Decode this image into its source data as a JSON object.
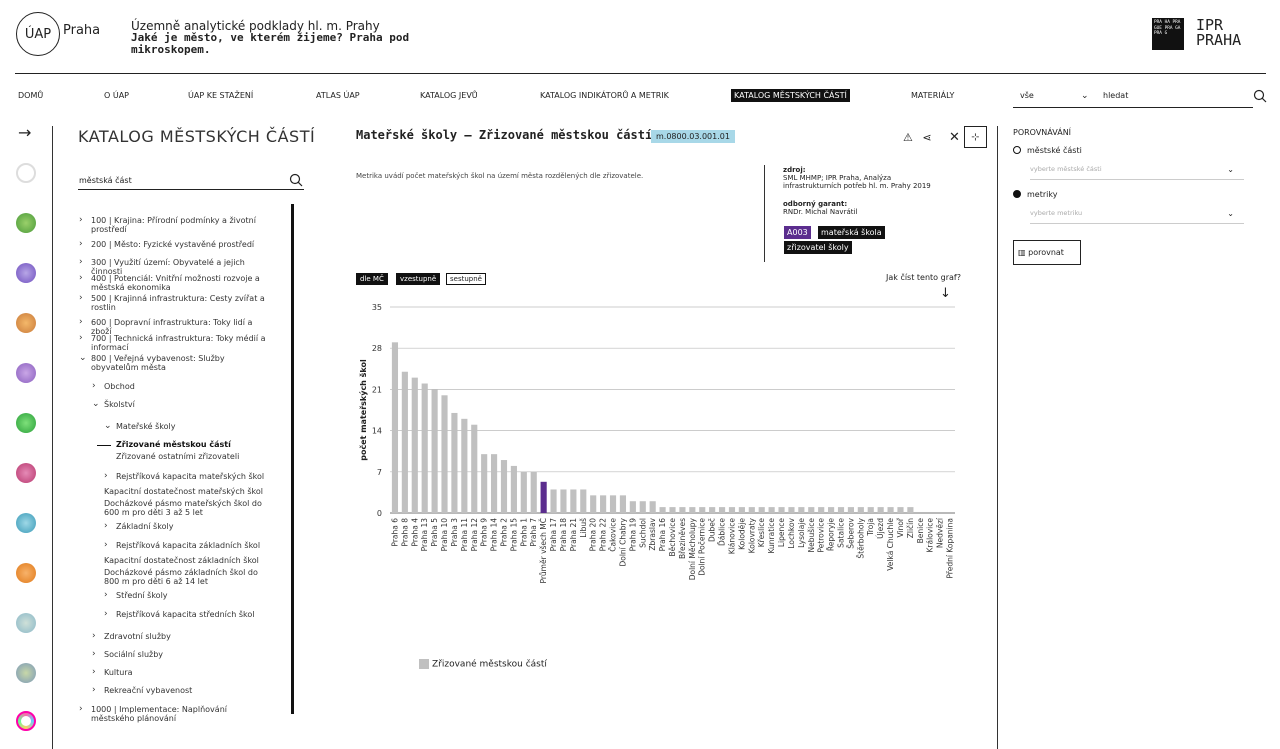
{
  "header": {
    "logo_text": "ÚAP",
    "logo_suffix": "Praha",
    "title": "Územně analytické podklady hl. m. Prahy",
    "subtitle": "Jaké je město, ve kterém žijeme? Praha pod mikroskopem.",
    "ipr_box": "PRA HA PRA GUE PRA GA PRA G",
    "ipr_text": "IPR PRAHA"
  },
  "nav": [
    "DOMŮ",
    "O ÚAP",
    "ÚAP KE STAŽENÍ",
    "ATLAS ÚAP",
    "KATALOG JEVŮ",
    "KATALOG INDIKÁTORŮ A METRIK",
    "KATALOG MĚSTSKÝCH ČÁSTÍ",
    "MATERIÁLY"
  ],
  "search": {
    "select": "vše",
    "placeholder": "hledat"
  },
  "left": {
    "title": "KATALOG MĚSTSKÝCH ČÁSTÍ",
    "search_value": "městská část",
    "tree": [
      "100 | Krajina: Přírodní podmínky a životní prostředí",
      "200 | Město: Fyzické vystavěné prostředí",
      "300 | Využití území: Obyvatelé a jejich činnosti",
      "400 | Potenciál: Vnitřní možnosti rozvoje a městská ekonomika",
      "500 | Krajinná infrastruktura: Cesty zvířat a rostlin",
      "600 | Dopravní infrastruktura: Toky lidí a zboží",
      "700 | Technická infrastruktura: Toky médií a informací",
      "800 | Veřejná vybavenost: Služby obyvatelům města",
      "Obchod",
      "Školství",
      "Mateřské školy",
      "Zřizované městskou částí",
      "Zřizované ostatními zřizovateli",
      "Rejstříková kapacita mateřských škol",
      "Kapacitní dostatečnost mateřských škol",
      "Docházkové pásmo mateřských škol do 600 m pro děti 3 až 5 let",
      "Základní školy",
      "Rejstříková kapacita základních škol",
      "Kapacitní dostatečnost základních škol",
      "Docházkové pásmo základních škol do 800 m pro děti 6 až 14 let",
      "Střední školy",
      "Rejstříková kapacita středních škol",
      "Zdravotní služby",
      "Sociální služby",
      "Kultura",
      "Rekreační vybavenost",
      "1000 | Implementace: Naplňování městského plánování"
    ]
  },
  "main": {
    "title": "Mateřské školy — Zřizované městskou částí",
    "code": "m.0800.03.001.01",
    "description": "Metrika uvádí počet mateřských škol na území města rozdělených dle zřizovatele.",
    "source_label": "zdroj:",
    "source": "SML MHMP; IPR Praha, Analýza infrastrukturních potřeb hl. m. Prahy 2019",
    "guarantor_label": "odborný garant:",
    "guarantor": "RNDr. Michal Navrátil",
    "tags": [
      "A003",
      "mateřská škola",
      "zřizovatel školy"
    ],
    "sort_buttons": [
      "dle MČ",
      "vzestupně",
      "sestupně"
    ],
    "how_to_read": "Jak číst tento graf?",
    "legend": "Zřizované městskou částí"
  },
  "chart_data": {
    "type": "bar",
    "ylabel": "počet mateřských škol",
    "xlabel": "",
    "ylim": [
      0,
      35
    ],
    "yticks": [
      0,
      7,
      14,
      21,
      28,
      35
    ],
    "categories": [
      "Praha 6",
      "Praha 8",
      "Praha 4",
      "Praha 13",
      "Praha 5",
      "Praha 10",
      "Praha 3",
      "Praha 11",
      "Praha 12",
      "Praha 9",
      "Praha 14",
      "Praha 2",
      "Praha 15",
      "Praha 1",
      "Praha 7",
      "Průměr všech MČ",
      "Praha 17",
      "Praha 18",
      "Praha 21",
      "Libuš",
      "Praha 20",
      "Praha 22",
      "Čakovice",
      "Dolní Chabry",
      "Praha 19",
      "Suchdol",
      "Zbraslav",
      "Praha 16",
      "Běchovice",
      "Březiněves",
      "Dolní Měcholupy",
      "Dolní Počernice",
      "Dubeč",
      "Ďáblice",
      "Klánovice",
      "Koloděje",
      "Kolovraty",
      "Křeslice",
      "Kunratice",
      "Lipence",
      "Lochkov",
      "Lysolaje",
      "Nebušice",
      "Petrovice",
      "Řeporyje",
      "Satalice",
      "Šeberov",
      "Štěrboholy",
      "Troja",
      "Újezd",
      "Velká Chuchle",
      "Vinoř",
      "Zličín",
      "Benice",
      "Královice",
      "Nedvězí",
      "Přední Kopanina"
    ],
    "values": [
      29,
      24,
      23,
      22,
      21,
      20,
      17,
      16,
      15,
      10,
      10,
      9,
      8,
      7,
      7,
      5.3,
      4,
      4,
      4,
      4,
      3,
      3,
      3,
      3,
      2,
      2,
      2,
      1,
      1,
      1,
      1,
      1,
      1,
      1,
      1,
      1,
      1,
      1,
      1,
      1,
      1,
      1,
      1,
      1,
      1,
      1,
      1,
      1,
      1,
      1,
      1,
      1,
      1,
      0,
      0,
      0,
      0
    ],
    "highlight_category": "Průměr všech MČ",
    "colors": {
      "bar": "#c0c0c0",
      "highlight": "#5b2d8e",
      "grid": "#bbbbbb"
    },
    "legend_position": "bottom-left"
  },
  "right": {
    "heading": "POROVNÁVÁNÍ",
    "opt1": "městské části",
    "opt1_placeholder": "vyberte městské části",
    "opt2": "metriky",
    "opt2_placeholder": "vyberte metriku",
    "compare": "porovnat"
  },
  "colors": {
    "tag_purple": "#5b2d8e",
    "code_bg": "#a8d8e8",
    "dark": "#111111"
  }
}
